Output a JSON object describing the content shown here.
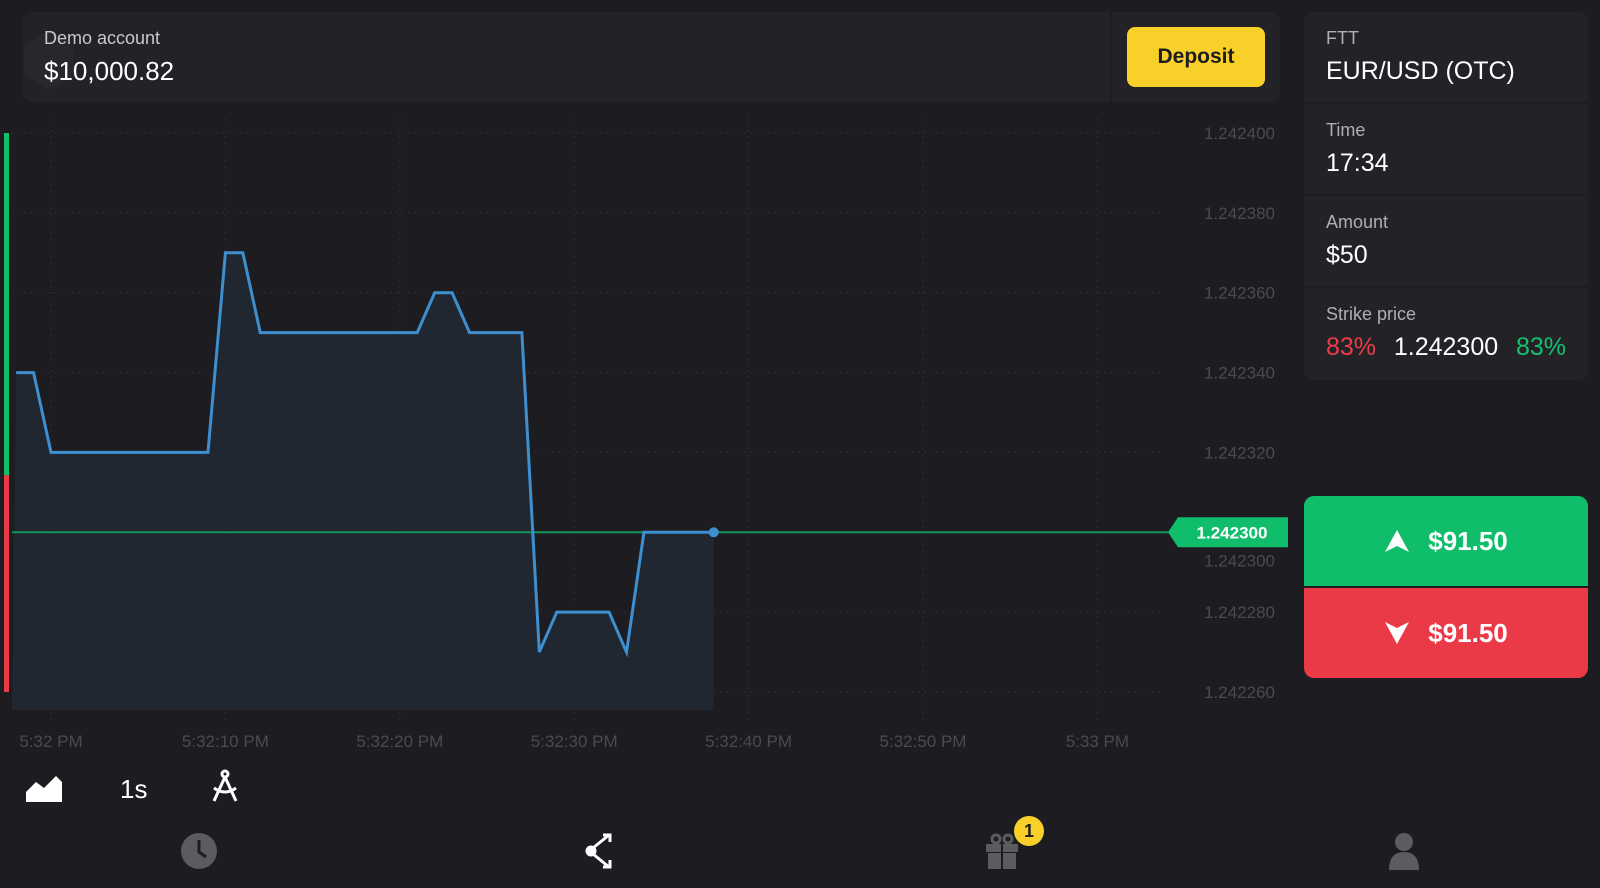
{
  "account": {
    "label": "Demo account",
    "balance": "$10,000.82"
  },
  "deposit_label": "Deposit",
  "panel": {
    "mode": "FTT",
    "asset": "EUR/USD (OTC)",
    "time_label": "Time",
    "time_value": "17:34",
    "amount_label": "Amount",
    "amount_value": "$50",
    "strike_label": "Strike price",
    "strike_down_pct": "83%",
    "strike_value": "1.242300",
    "strike_up_pct": "83%"
  },
  "buttons": {
    "up": "$91.50",
    "down": "$91.50"
  },
  "toolbar": {
    "chart_type_icon": "area-chart-icon",
    "timeframe": "1s",
    "drawing_icon": "compass-icon"
  },
  "nav": {
    "items": [
      "clock-icon",
      "share-icon",
      "gift-icon",
      "user-icon"
    ],
    "gift_badge": "1"
  },
  "colors": {
    "up": "#10bd6b",
    "down": "#ea3a48",
    "line": "#3d8fd0",
    "deposit": "#f9d029"
  },
  "chart_data": {
    "type": "area",
    "y_ticks": [
      "1.242400",
      "1.242380",
      "1.242360",
      "1.242340",
      "1.242320",
      "1.242300",
      "1.242280",
      "1.242260"
    ],
    "x_ticks": [
      "5:32 PM",
      "5:32:10 PM",
      "5:32:20 PM",
      "5:32:30 PM",
      "5:32:40 PM",
      "5:32:50 PM",
      "5:33 PM"
    ],
    "ylim": [
      1.24226,
      1.2424
    ],
    "current_price": "1.242300",
    "grid": true,
    "points": [
      [
        "5:31:58 PM",
        1.24234
      ],
      [
        "5:31:59 PM",
        1.24234
      ],
      [
        "5:32:00 PM",
        1.24232
      ],
      [
        "5:32:09 PM",
        1.24232
      ],
      [
        "5:32:10 PM",
        1.24237
      ],
      [
        "5:32:11 PM",
        1.24237
      ],
      [
        "5:32:12 PM",
        1.24235
      ],
      [
        "5:32:21 PM",
        1.24235
      ],
      [
        "5:32:22 PM",
        1.24236
      ],
      [
        "5:32:23 PM",
        1.24236
      ],
      [
        "5:32:24 PM",
        1.24235
      ],
      [
        "5:32:27 PM",
        1.24235
      ],
      [
        "5:32:28 PM",
        1.24227
      ],
      [
        "5:32:29 PM",
        1.24228
      ],
      [
        "5:32:32 PM",
        1.24228
      ],
      [
        "5:32:33 PM",
        1.24227
      ],
      [
        "5:32:34 PM",
        1.2423
      ],
      [
        "5:32:38 PM",
        1.2423
      ]
    ]
  }
}
